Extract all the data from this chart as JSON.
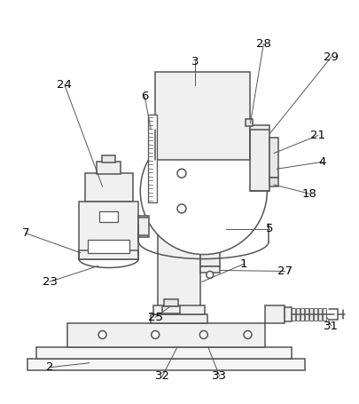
{
  "background_color": "#ffffff",
  "line_color": "#555555",
  "line_width": 1.1,
  "figsize": [
    4.05,
    4.55
  ],
  "dpi": 100,
  "label_fontsize": 9.5
}
